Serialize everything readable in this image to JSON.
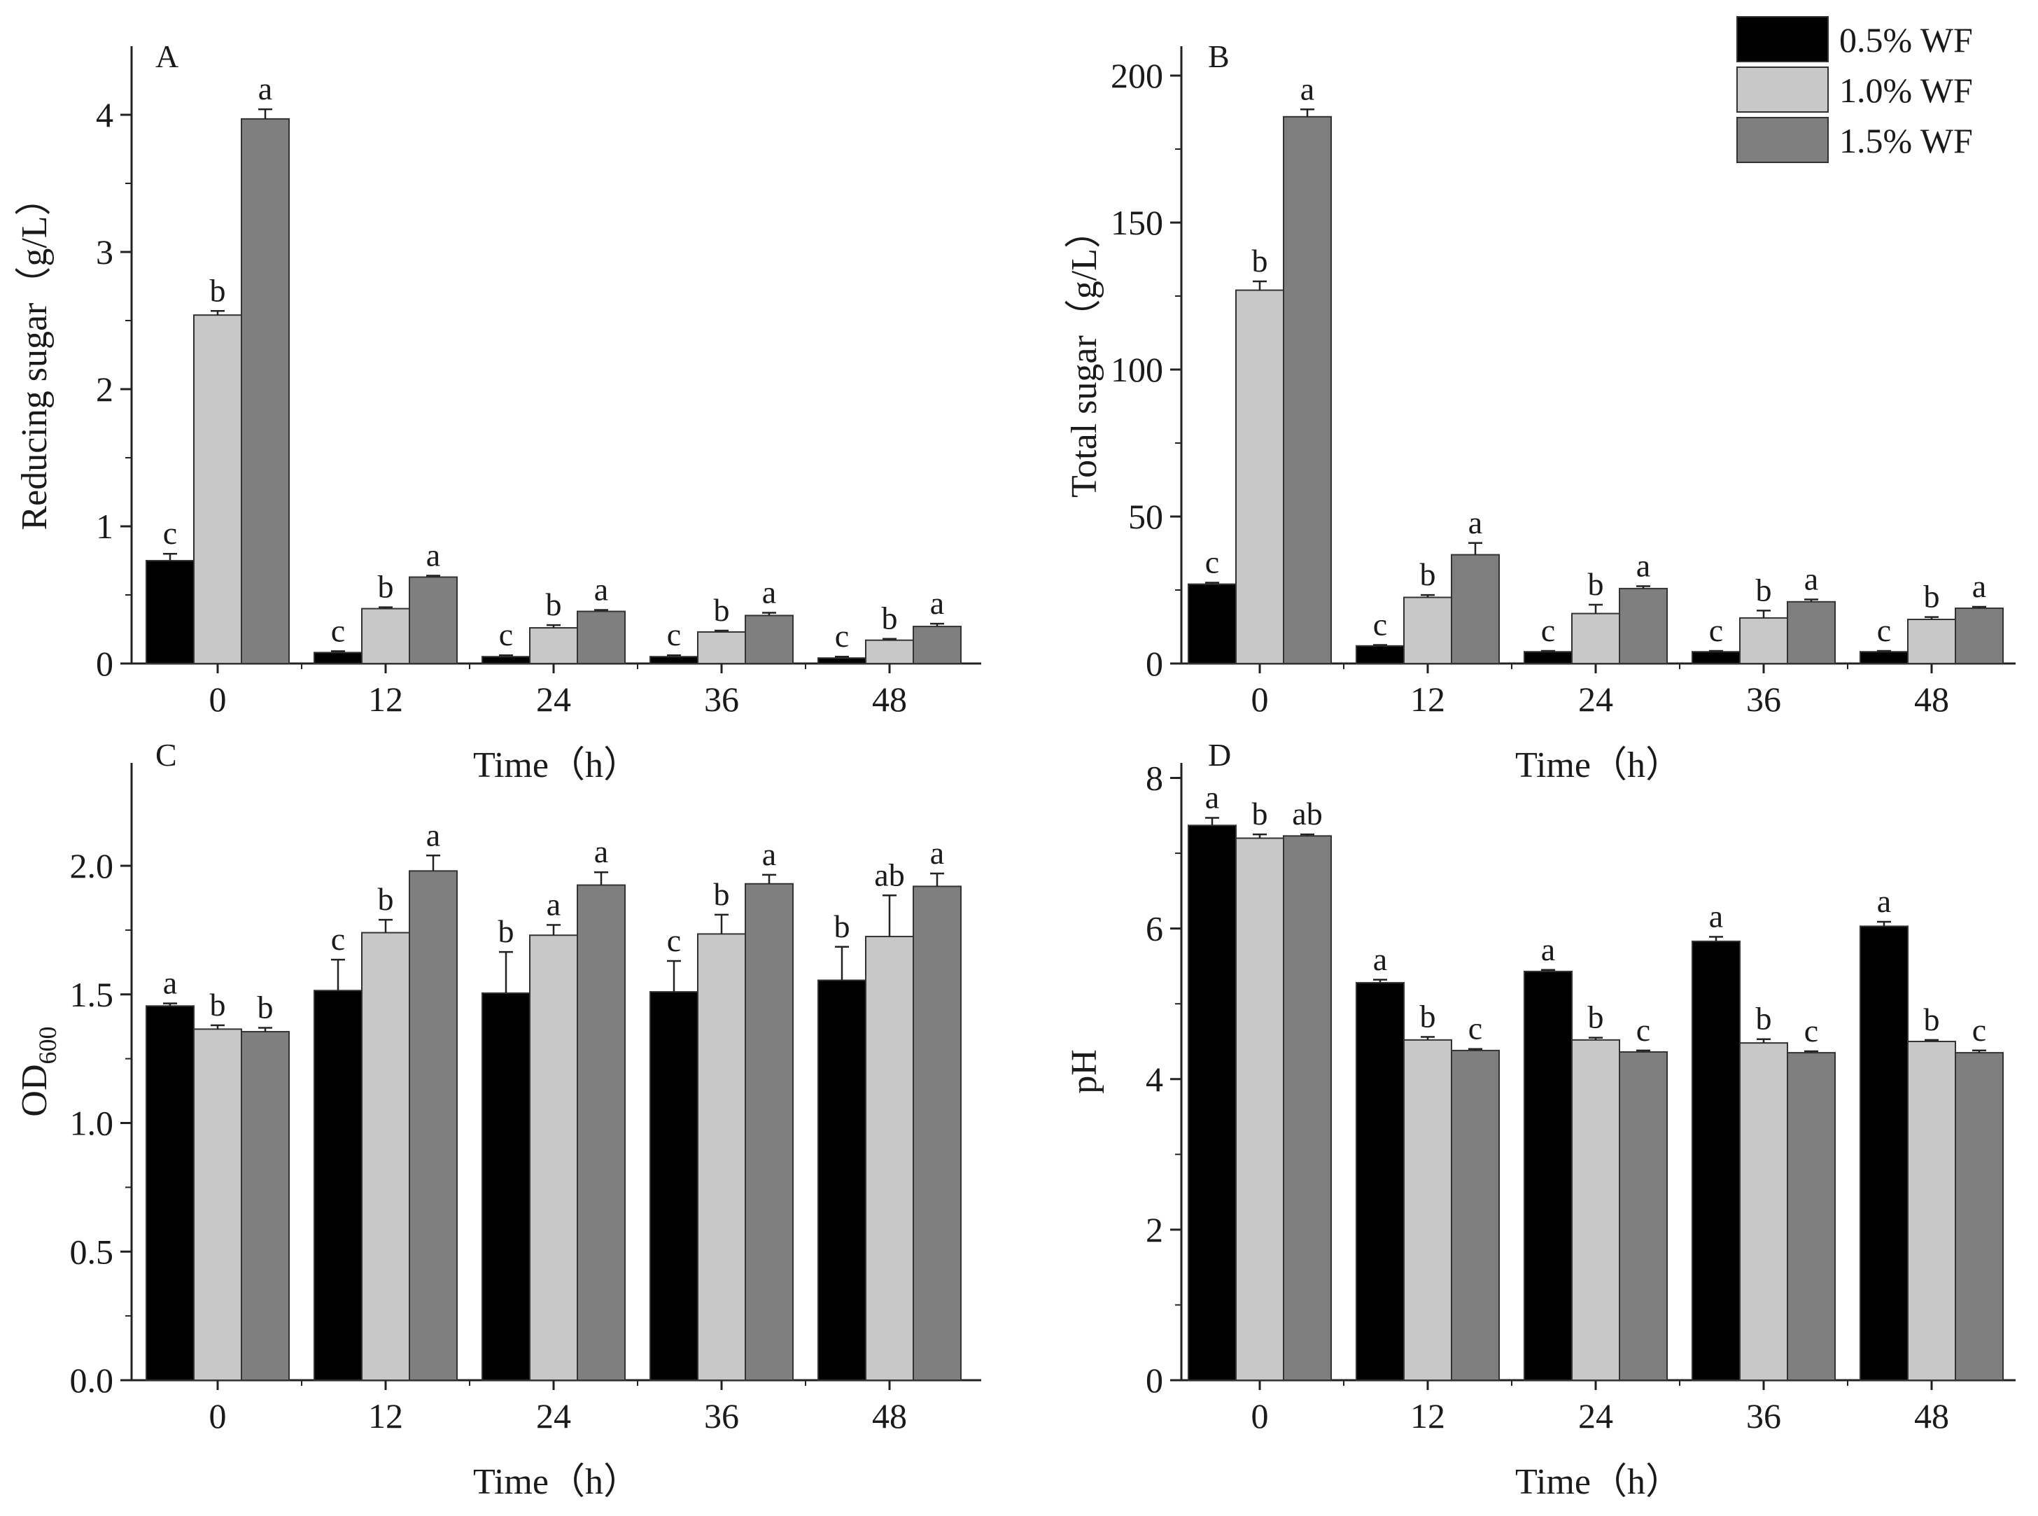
{
  "legend": {
    "items": [
      {
        "label": "0.5% WF",
        "color": "#000000"
      },
      {
        "label": "1.0% WF",
        "color": "#c8c8c8"
      },
      {
        "label": "1.5% WF",
        "color": "#7f7f7f"
      }
    ]
  },
  "chart_data": [
    {
      "type": "bar",
      "panel": "A",
      "title": "",
      "xlabel": "Time（h）",
      "ylabel": "Reducing sugar（g/L）",
      "ylim": [
        0,
        4.5
      ],
      "yticks": [
        0,
        1,
        2,
        3,
        4
      ],
      "ytick_labels": [
        "0",
        "1",
        "2",
        "3",
        "4"
      ],
      "categories": [
        "0",
        "12",
        "24",
        "36",
        "48"
      ],
      "series": [
        {
          "name": "0.5% WF",
          "color": "#000000",
          "values": [
            0.75,
            0.08,
            0.05,
            0.05,
            0.04
          ],
          "errors": [
            0.05,
            0.01,
            0.01,
            0.01,
            0.01
          ],
          "letters": [
            "c",
            "c",
            "c",
            "c",
            "c"
          ]
        },
        {
          "name": "1.0% WF",
          "color": "#c8c8c8",
          "values": [
            2.54,
            0.4,
            0.26,
            0.23,
            0.17
          ],
          "errors": [
            0.03,
            0.01,
            0.02,
            0.01,
            0.01
          ],
          "letters": [
            "b",
            "b",
            "b",
            "b",
            "b"
          ]
        },
        {
          "name": "1.5% WF",
          "color": "#7f7f7f",
          "values": [
            3.97,
            0.63,
            0.38,
            0.35,
            0.27
          ],
          "errors": [
            0.07,
            0.01,
            0.01,
            0.02,
            0.02
          ],
          "letters": [
            "a",
            "a",
            "a",
            "a",
            "a"
          ]
        }
      ]
    },
    {
      "type": "bar",
      "panel": "B",
      "title": "",
      "xlabel": "Time（h）",
      "ylabel": "Total sugar（g/L）",
      "ylim": [
        0,
        210
      ],
      "yticks": [
        0,
        50,
        100,
        150,
        200
      ],
      "ytick_labels": [
        "0",
        "50",
        "100",
        "150",
        "200"
      ],
      "categories": [
        "0",
        "12",
        "24",
        "36",
        "48"
      ],
      "series": [
        {
          "name": "0.5% WF",
          "color": "#000000",
          "values": [
            27,
            6,
            4,
            4,
            4
          ],
          "errors": [
            0.5,
            0.3,
            0.3,
            0.3,
            0.3
          ],
          "letters": [
            "c",
            "c",
            "c",
            "c",
            "c"
          ]
        },
        {
          "name": "1.0% WF",
          "color": "#c8c8c8",
          "values": [
            127,
            22.5,
            17,
            15.5,
            15
          ],
          "errors": [
            3,
            0.8,
            3,
            2.5,
            0.8
          ],
          "letters": [
            "b",
            "b",
            "b",
            "b",
            "b"
          ]
        },
        {
          "name": "1.5% WF",
          "color": "#7f7f7f",
          "values": [
            186,
            37,
            25.5,
            21,
            18.8
          ],
          "errors": [
            2.5,
            4,
            0.8,
            0.8,
            0.5
          ],
          "letters": [
            "a",
            "a",
            "a",
            "a",
            "a"
          ]
        }
      ]
    },
    {
      "type": "bar",
      "panel": "C",
      "title": "",
      "xlabel": "Time（h）",
      "ylabel": "OD600",
      "ylabel_main": "OD",
      "ylabel_sub": "600",
      "ylim": [
        0,
        2.4
      ],
      "yticks": [
        0,
        0.5,
        1,
        1.5,
        2
      ],
      "ytick_labels": [
        "0.0",
        "0.5",
        "1.0",
        "1.5",
        "2.0"
      ],
      "categories": [
        "0",
        "12",
        "24",
        "36",
        "48"
      ],
      "series": [
        {
          "name": "0.5% WF",
          "color": "#000000",
          "values": [
            1.455,
            1.515,
            1.505,
            1.51,
            1.555
          ],
          "errors": [
            0.01,
            0.12,
            0.16,
            0.12,
            0.13
          ],
          "letters": [
            "a",
            "c",
            "b",
            "c",
            "b"
          ]
        },
        {
          "name": "1.0% WF",
          "color": "#c8c8c8",
          "values": [
            1.365,
            1.74,
            1.73,
            1.735,
            1.725
          ],
          "errors": [
            0.015,
            0.05,
            0.04,
            0.075,
            0.16
          ],
          "letters": [
            "b",
            "b",
            "a",
            "b",
            "ab"
          ]
        },
        {
          "name": "1.5% WF",
          "color": "#7f7f7f",
          "values": [
            1.355,
            1.98,
            1.925,
            1.93,
            1.92
          ],
          "errors": [
            0.015,
            0.06,
            0.05,
            0.035,
            0.05
          ],
          "letters": [
            "b",
            "a",
            "a",
            "a",
            "a"
          ]
        }
      ]
    },
    {
      "type": "bar",
      "panel": "D",
      "title": "",
      "xlabel": "Time（h）",
      "ylabel": "pH",
      "ylim": [
        0,
        8.2
      ],
      "yticks": [
        0,
        2,
        4,
        6,
        8
      ],
      "ytick_labels": [
        "0",
        "2",
        "4",
        "6",
        "8"
      ],
      "categories": [
        "0",
        "12",
        "24",
        "36",
        "48"
      ],
      "series": [
        {
          "name": "0.5% WF",
          "color": "#000000",
          "values": [
            7.37,
            5.28,
            5.43,
            5.83,
            6.03
          ],
          "errors": [
            0.1,
            0.04,
            0.02,
            0.06,
            0.06
          ],
          "letters": [
            "a",
            "a",
            "a",
            "a",
            "a"
          ]
        },
        {
          "name": "1.0% WF",
          "color": "#c8c8c8",
          "values": [
            7.2,
            4.52,
            4.52,
            4.48,
            4.5
          ],
          "errors": [
            0.05,
            0.04,
            0.03,
            0.05,
            0.02
          ],
          "letters": [
            "b",
            "b",
            "b",
            "b",
            "b"
          ]
        },
        {
          "name": "1.5% WF",
          "color": "#7f7f7f",
          "values": [
            7.23,
            4.38,
            4.36,
            4.35,
            4.35
          ],
          "errors": [
            0.02,
            0.02,
            0.02,
            0.02,
            0.03
          ],
          "letters": [
            "ab",
            "c",
            "c",
            "c",
            "c"
          ]
        }
      ]
    }
  ]
}
